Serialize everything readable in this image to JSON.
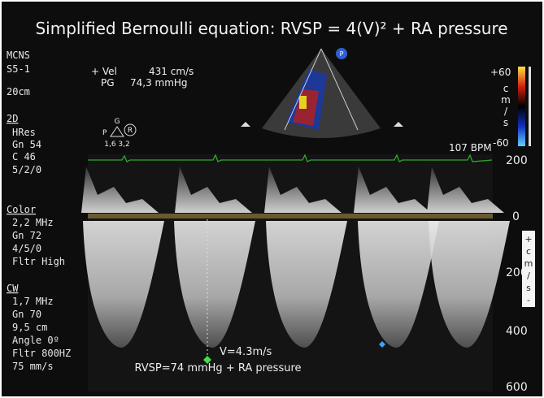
{
  "title": "Simplified Bernoulli equation: RVSP = 4(V)² + RA pressure",
  "left_panel": {
    "mode": [
      "MCNS",
      "S5-1"
    ],
    "depth": "20cm",
    "sections": [
      {
        "heading": "2D",
        "lines": [
          "HRes",
          "Gn 54",
          "C 46",
          "5/2/0"
        ]
      },
      {
        "heading": "Color",
        "lines": [
          "2,2 MHz",
          "Gn 72",
          "4/5/0",
          "Fltr High"
        ]
      },
      {
        "heading": "CW",
        "lines": [
          "1,7 MHz",
          "Gn 70",
          "9,5 cm",
          "Angle 0º",
          "Fltr 800HZ",
          "75 mm/s"
        ]
      }
    ]
  },
  "measurements": {
    "vel_label": "+ Vel",
    "vel_value": "431 cm/s",
    "pg_label": "PG",
    "pg_value": "74,3 mmHg"
  },
  "probe": {
    "top": "G",
    "left": "P",
    "right": "R",
    "values": "1,6 3,2"
  },
  "sector_marker": "P",
  "color_scale": {
    "max": "+60",
    "min": "-60",
    "unit": [
      "c",
      "m",
      "/",
      "s"
    ]
  },
  "heart_rate": "107 BPM",
  "velocity_scale": {
    "labels": [
      "200",
      "0",
      "200",
      "400",
      "600"
    ],
    "unit": [
      "+",
      "c",
      "m",
      "/",
      "s",
      "-"
    ]
  },
  "annotations": [
    "V=4.3m/s",
    "RVSP=74 mmHg + RA pressure"
  ]
}
